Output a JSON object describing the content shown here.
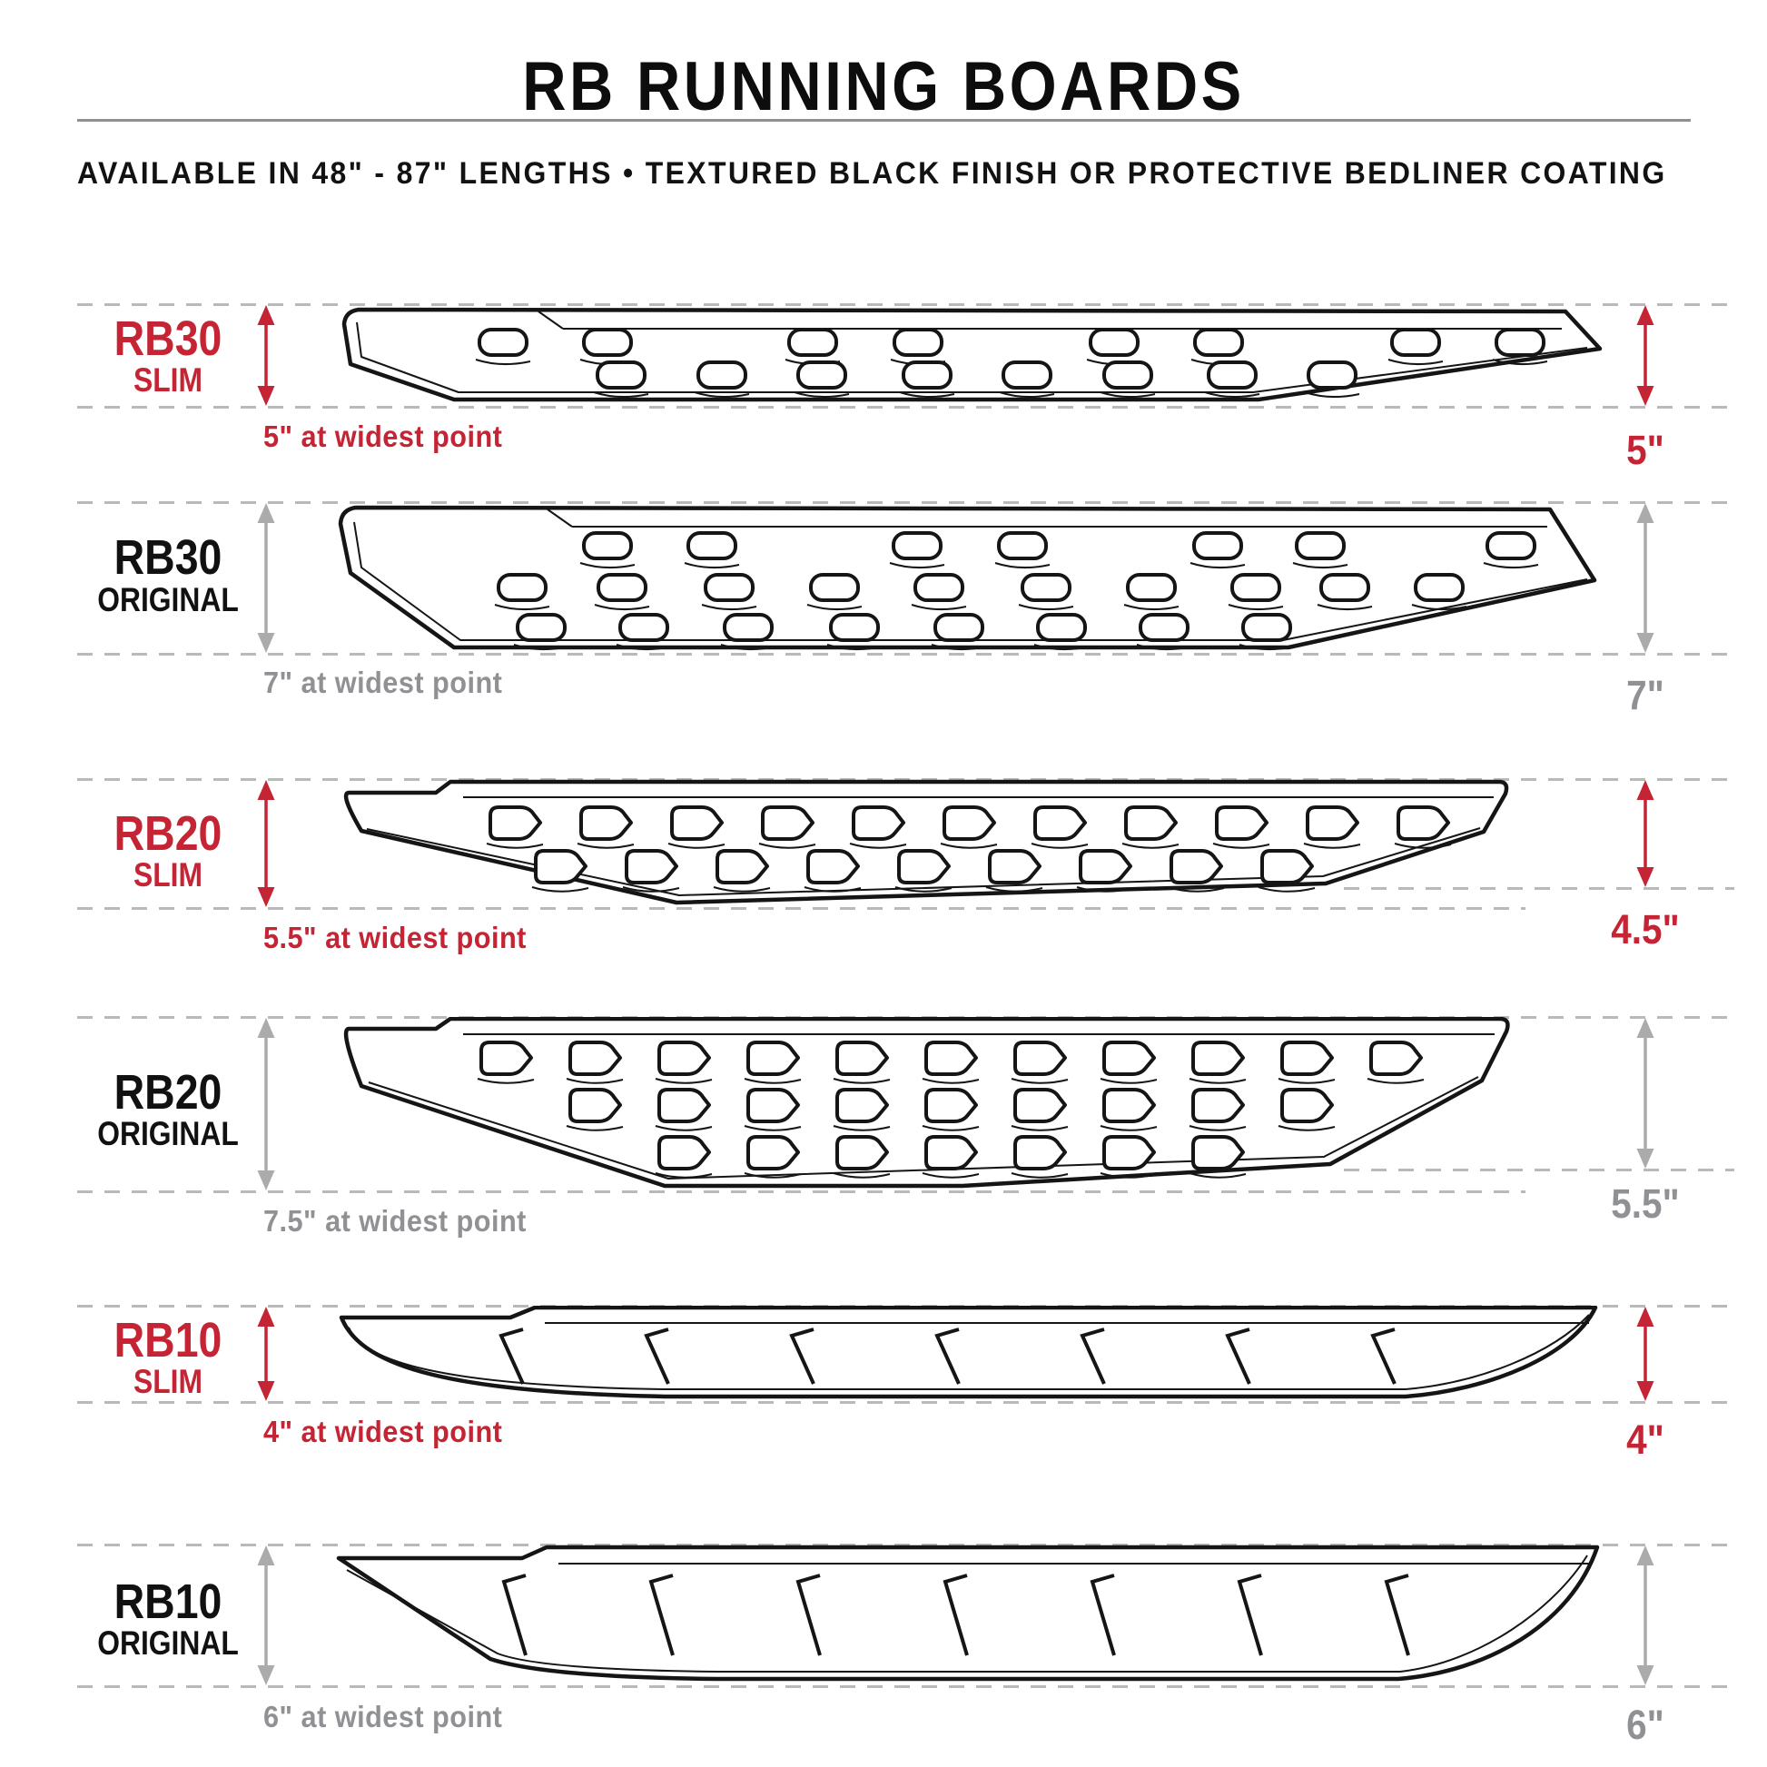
{
  "title": "RB RUNNING BOARDS",
  "subtitle": "AVAILABLE IN 48\" - 87\" LENGTHS   •   TEXTURED BLACK FINISH OR PROTECTIVE BEDLINER COATING",
  "colors": {
    "red": "#C42433",
    "black": "#151515",
    "gray_text": "#8F9194",
    "gray_arrow": "#ABABAB",
    "dash": "#B9B9B9"
  },
  "rows": [
    {
      "model": "RB30",
      "variant": "SLIM",
      "widest": "5\" at widest point",
      "height": "5\"",
      "accent": "red"
    },
    {
      "model": "RB30",
      "variant": "ORIGINAL",
      "widest": "7\" at widest point",
      "height": "7\"",
      "accent": "gray"
    },
    {
      "model": "RB20",
      "variant": "SLIM",
      "widest": "5.5\" at widest point",
      "height": "4.5\"",
      "accent": "red"
    },
    {
      "model": "RB20",
      "variant": "ORIGINAL",
      "widest": "7.5\" at widest point",
      "height": "5.5\"",
      "accent": "gray"
    },
    {
      "model": "RB10",
      "variant": "SLIM",
      "widest": "4\" at widest point",
      "height": "4\"",
      "accent": "red"
    },
    {
      "model": "RB10",
      "variant": "ORIGINAL",
      "widest": "6\" at widest point",
      "height": "6\"",
      "accent": "gray"
    }
  ]
}
